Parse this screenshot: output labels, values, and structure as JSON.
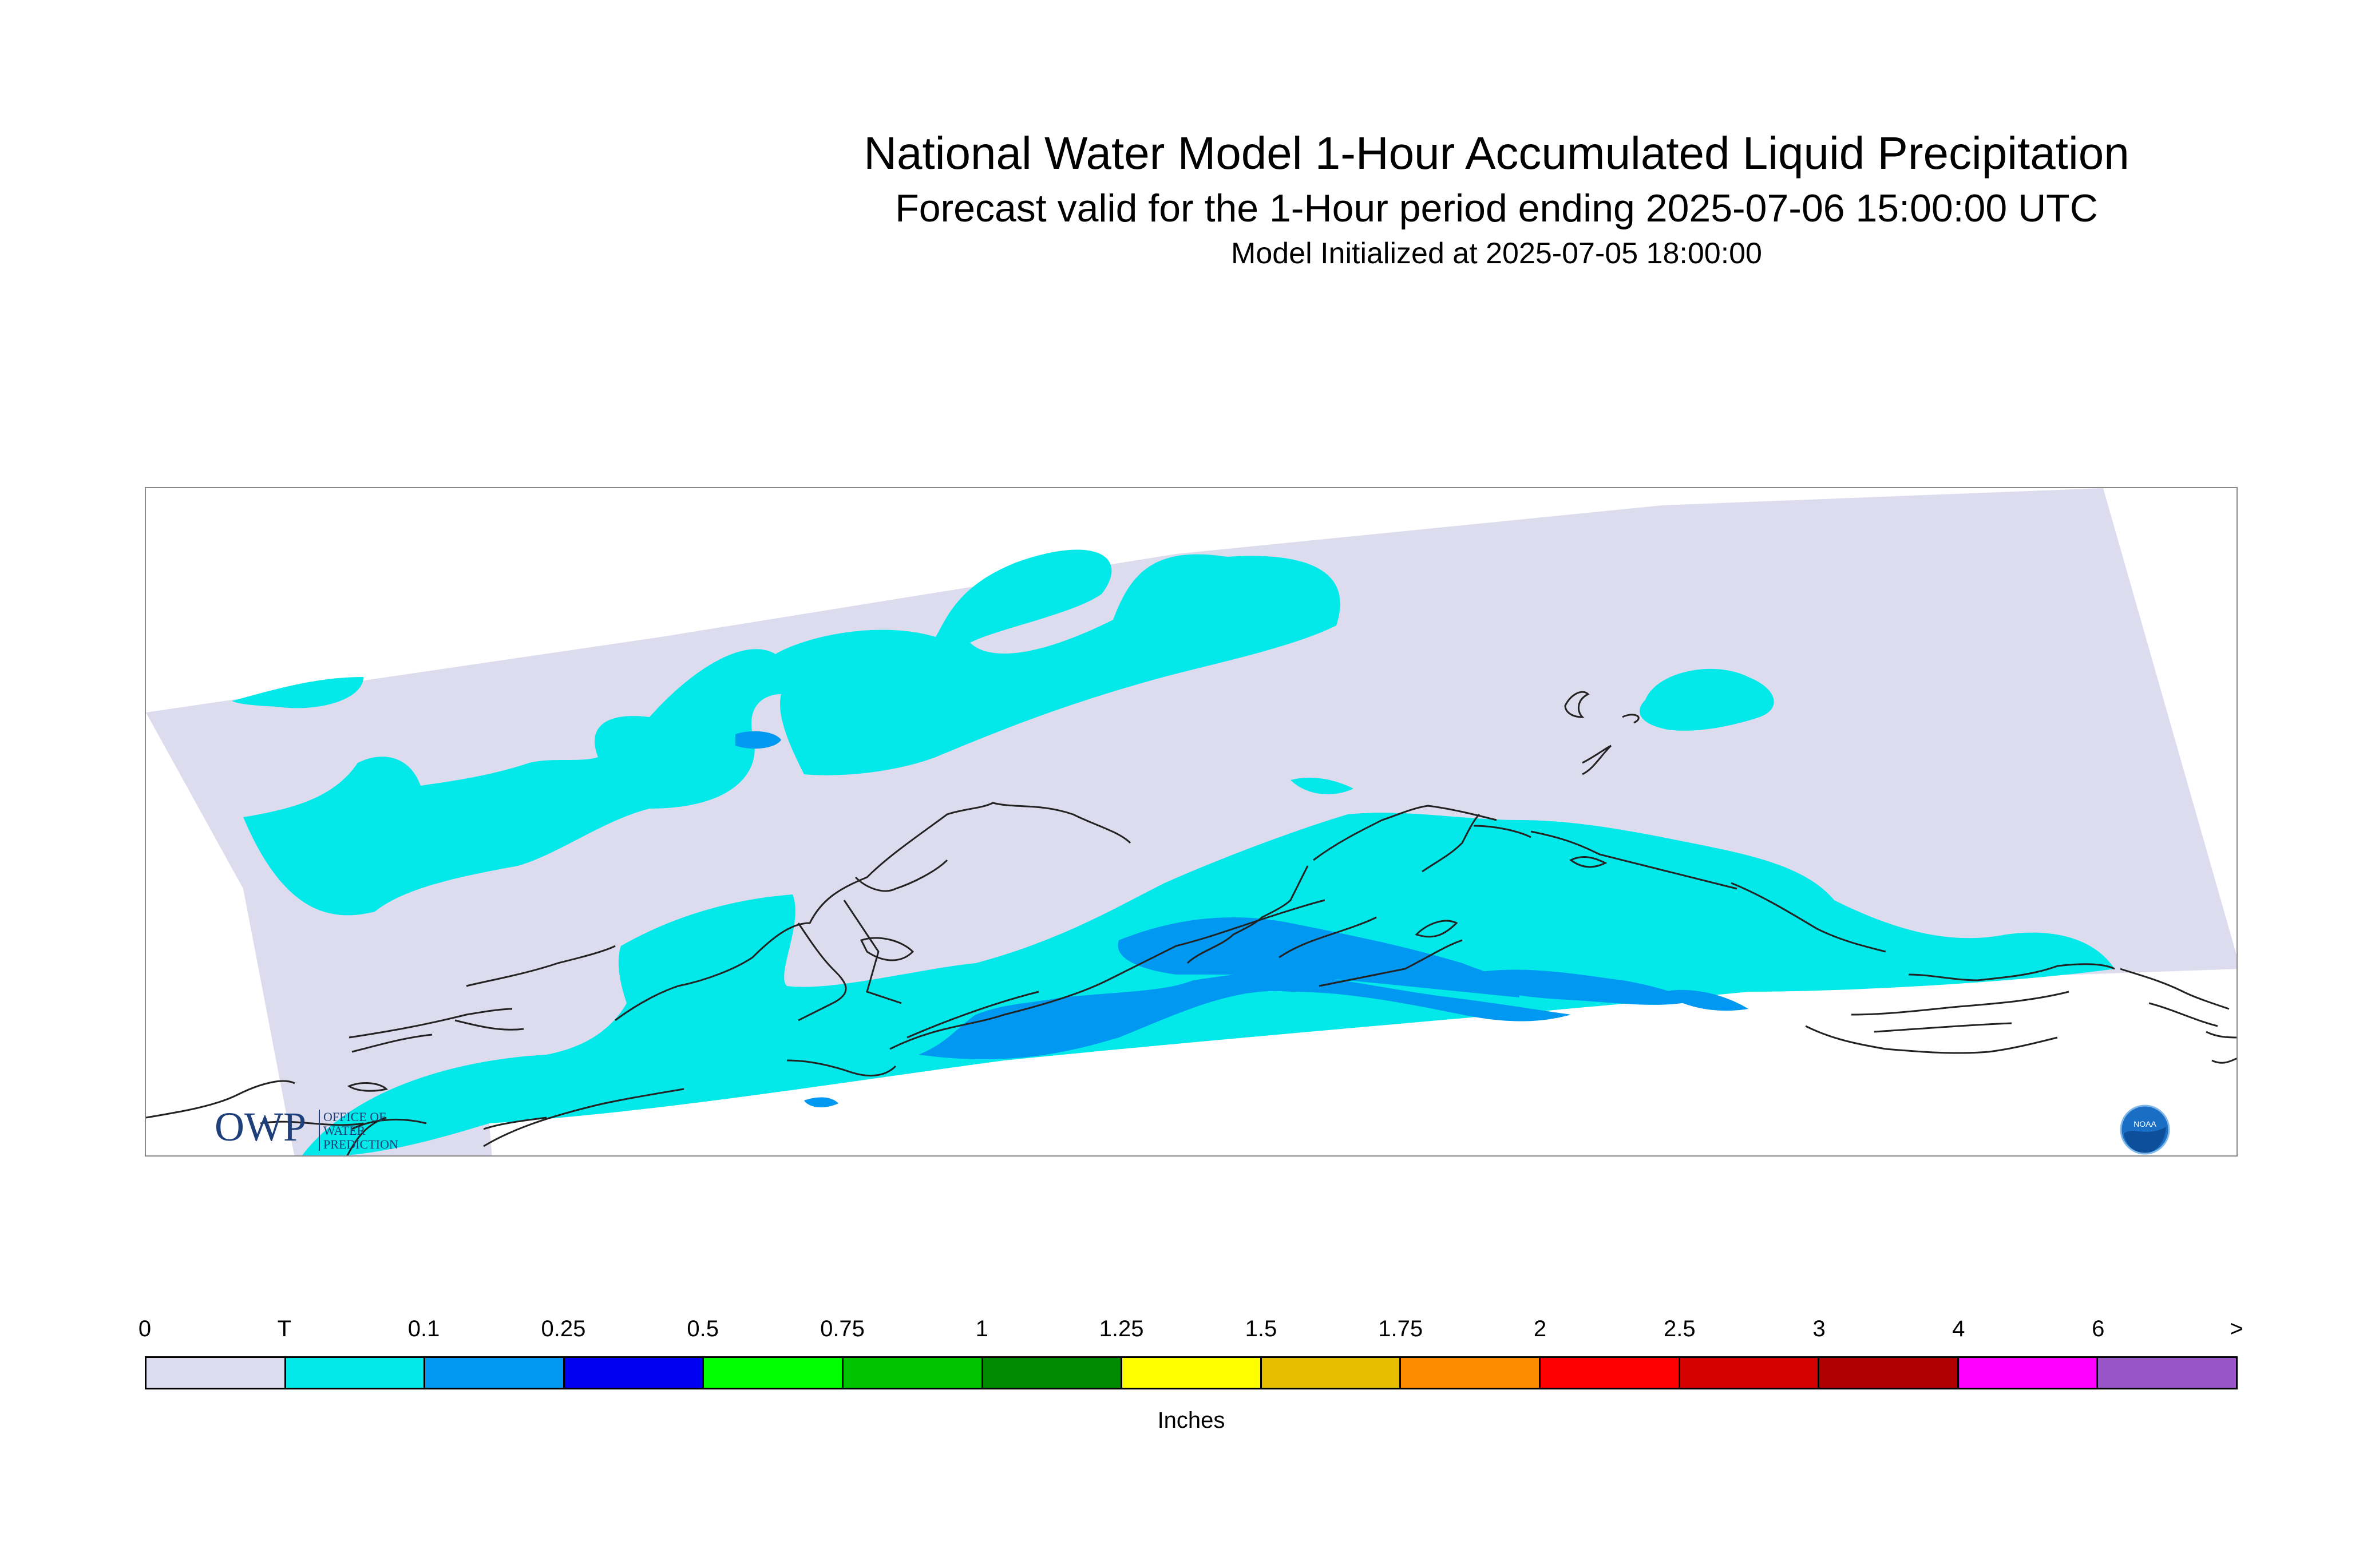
{
  "title": "National Water Model 1-Hour Accumulated Liquid Precipitation",
  "subtitle": "Forecast valid for the 1-Hour period ending 2025-07-06 15:00:00 UTC",
  "initialized": "Model Initialized at 2025-07-05 18:00:00",
  "logos": {
    "owp_mark": "OWP",
    "owp_text": [
      "OFFICE OF",
      "WATER",
      "PREDICTION"
    ],
    "noaa_text": "NOAA"
  },
  "legend": {
    "units": "Inches",
    "ticks": [
      "0",
      "T",
      "0.1",
      "0.25",
      "0.5",
      "0.75",
      "1",
      "1.25",
      "1.5",
      "1.75",
      "2",
      "2.5",
      "3",
      "4",
      "6",
      ">"
    ],
    "colors": [
      "#dcdcee",
      "#03e8e8",
      "#0098f0",
      "#0000f0",
      "#00ff00",
      "#00c400",
      "#008a00",
      "#ffff00",
      "#e6be00",
      "#ff8c00",
      "#ff0000",
      "#d40000",
      "#b00000",
      "#ff00ff",
      "#9955c8"
    ]
  },
  "colors": {
    "no_precip": "#dcdcee",
    "trace": "#03e8e8",
    "light": "#0098f0",
    "moderate": "#0000f0",
    "coastline": "#222222"
  }
}
